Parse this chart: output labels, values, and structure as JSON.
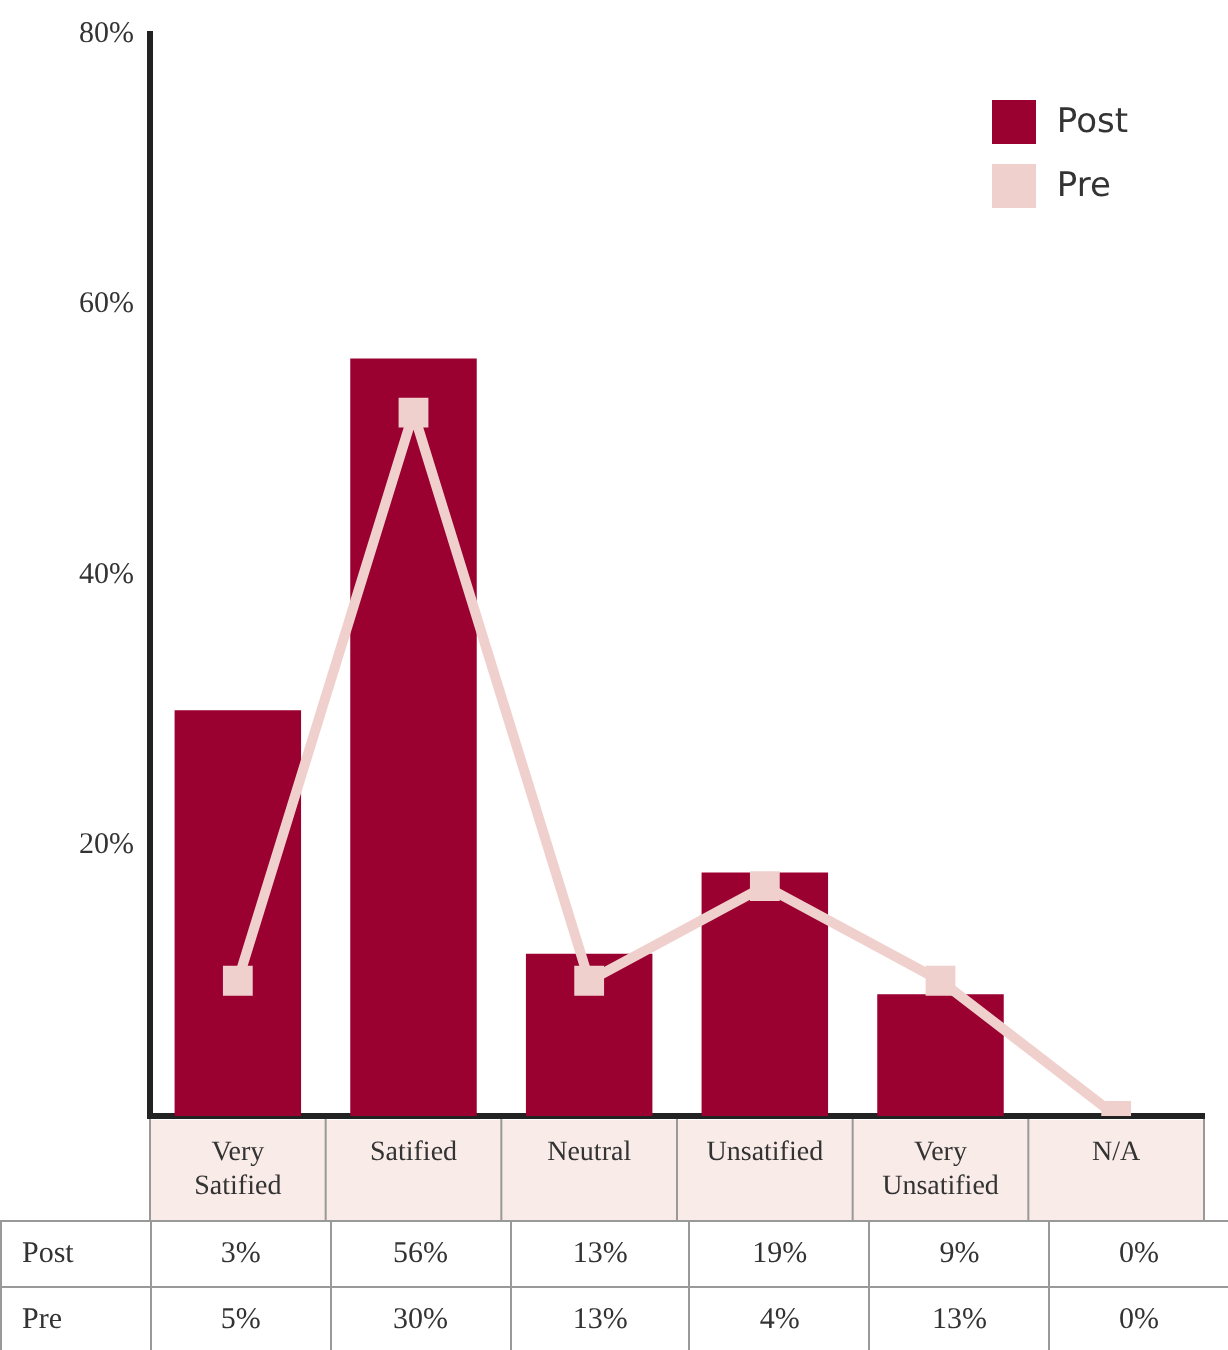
{
  "chart_data": {
    "type": "bar",
    "categories": [
      "Very Satified",
      "Satified",
      "Neutral",
      "Unsatified",
      "Very Unsatified",
      "N/A"
    ],
    "series": [
      {
        "name": "Post",
        "color": "#9a0030",
        "values": [
          30,
          56,
          12,
          18,
          9,
          0
        ]
      },
      {
        "name": "Pre",
        "type": "line",
        "color": "#f0d0cc",
        "values": [
          10,
          52,
          10,
          17,
          10,
          0
        ]
      }
    ],
    "annotations": [
      "Post",
      "3%",
      "56%",
      "13%",
      "19%",
      "9%",
      "0%",
      "Pre",
      "5%",
      "30%",
      "13%",
      "4%",
      "13%",
      "0%"
    ],
    "ylim": [
      0,
      80
    ],
    "yticks": [
      {
        "value": 0,
        "label": null
      },
      {
        "value": 20,
        "label": "20%"
      },
      {
        "value": 40,
        "label": "40%"
      },
      {
        "value": 60,
        "label": "60%"
      },
      {
        "value": 80,
        "label": "80%"
      }
    ],
    "grid": false,
    "legend": "top right",
    "marker": "square",
    "line_style": "solid"
  }
}
